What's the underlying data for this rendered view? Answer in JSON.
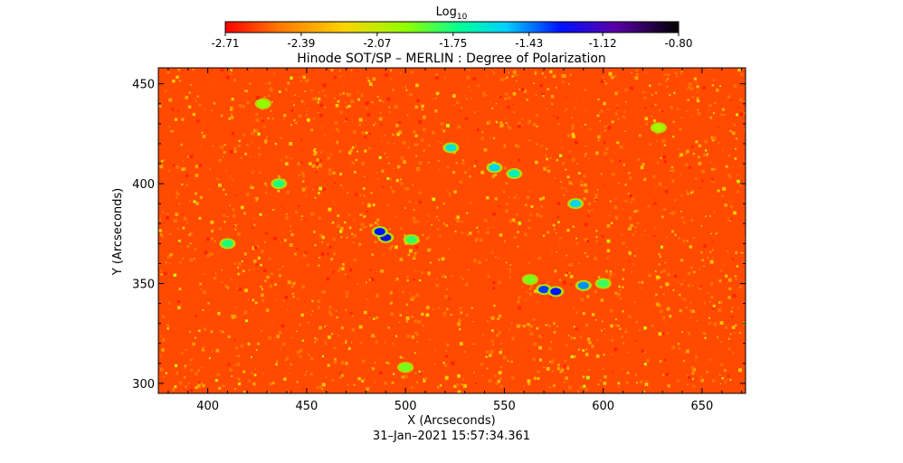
{
  "chart_data": {
    "type": "heatmap",
    "title": "Hinode SOT/SP – MERLIN : Degree of Polarization",
    "xlabel": "X (Arcseconds)",
    "ylabel": "Y (Arcseconds)",
    "timestamp": "31–Jan–2021 15:57:34.361",
    "xlim": [
      375,
      672
    ],
    "ylim": [
      295,
      458
    ],
    "x_ticks": [
      400,
      450,
      500,
      550,
      600,
      650
    ],
    "y_ticks": [
      300,
      350,
      400,
      450
    ],
    "colorbar": {
      "label_base": "Log",
      "label_sub": "10",
      "range": [
        -2.71,
        -0.8
      ],
      "tick_labels": [
        "-2.71",
        "-2.39",
        "-2.07",
        "-1.75",
        "-1.43",
        "-1.12",
        "-0.80"
      ],
      "tick_values": [
        -2.71,
        -2.39,
        -2.07,
        -1.75,
        -1.43,
        -1.12,
        -0.8
      ]
    },
    "features": [
      {
        "x": 490,
        "y": 373,
        "value": -1.25
      },
      {
        "x": 487,
        "y": 376,
        "value": -1.3
      },
      {
        "x": 570,
        "y": 347,
        "value": -1.35
      },
      {
        "x": 576,
        "y": 346,
        "value": -1.3
      },
      {
        "x": 590,
        "y": 349,
        "value": -1.45
      },
      {
        "x": 586,
        "y": 390,
        "value": -1.55
      },
      {
        "x": 555,
        "y": 405,
        "value": -1.65
      },
      {
        "x": 545,
        "y": 408,
        "value": -1.55
      },
      {
        "x": 523,
        "y": 418,
        "value": -1.6
      },
      {
        "x": 503,
        "y": 372,
        "value": -1.8
      },
      {
        "x": 410,
        "y": 370,
        "value": -1.75
      },
      {
        "x": 436,
        "y": 400,
        "value": -1.75
      },
      {
        "x": 428,
        "y": 440,
        "value": -1.95
      },
      {
        "x": 628,
        "y": 428,
        "value": -2.0
      },
      {
        "x": 500,
        "y": 308,
        "value": -1.9
      },
      {
        "x": 600,
        "y": 350,
        "value": -1.8
      },
      {
        "x": 563,
        "y": 352,
        "value": -1.9
      }
    ],
    "grid": false
  }
}
